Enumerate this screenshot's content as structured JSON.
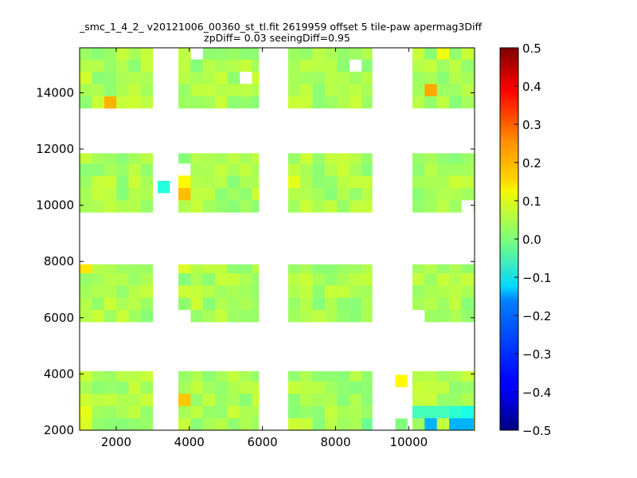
{
  "chart_data": {
    "type": "heatmap",
    "title_line1": "_smc_1_4_2_ v20121006_00360_st_tl.fit 2619959 offset 5 tile-paw apermag3Diff",
    "title_line2": "zpDiff= 0.03 seeingDiff=0.95",
    "xlabel": "",
    "ylabel": "",
    "xlim": [
      1000,
      11800
    ],
    "ylim": [
      2000,
      15600
    ],
    "xticks": [
      "2000",
      "4000",
      "6000",
      "8000",
      "10000"
    ],
    "xtick_values": [
      2000,
      4000,
      6000,
      8000,
      10000
    ],
    "yticks": [
      "2000",
      "4000",
      "6000",
      "8000",
      "10000",
      "12000",
      "14000"
    ],
    "ytick_values": [
      2000,
      4000,
      6000,
      8000,
      10000,
      12000,
      14000
    ],
    "colorbar": {
      "colormap": "jet",
      "vmin": -0.5,
      "vmax": 0.5,
      "ticks": [
        "0.5",
        "0.4",
        "0.3",
        "0.2",
        "0.1",
        "0.0",
        "−0.1",
        "−0.2",
        "−0.3",
        "−0.4",
        "−0.5"
      ],
      "tick_values": [
        0.5,
        0.4,
        0.3,
        0.2,
        0.1,
        0.0,
        -0.1,
        -0.2,
        -0.3,
        -0.4,
        -0.5
      ]
    },
    "cell_size": [
      335,
      435
    ],
    "x_bands": [
      [
        1000,
        3000
      ],
      [
        3700,
        5900
      ],
      [
        6700,
        9000
      ],
      [
        10100,
        11800
      ]
    ],
    "y_bands": [
      [
        2000,
        4100
      ],
      [
        5850,
        7900
      ],
      [
        9750,
        11850
      ],
      [
        13450,
        15600
      ]
    ],
    "base_value": 0.04,
    "cells": [
      {
        "x": 1300,
        "y": 14700,
        "v": 0.08
      },
      {
        "x": 2300,
        "y": 15300,
        "v": 0.07
      },
      {
        "x": 1750,
        "y": 13700,
        "v": 0.2
      },
      {
        "x": 10600,
        "y": 14100,
        "v": 0.21
      },
      {
        "x": 10900,
        "y": 15400,
        "v": 0.11
      },
      {
        "x": 3300,
        "y": 10650,
        "v": -0.09
      },
      {
        "x": 3900,
        "y": 10650,
        "v": 0.13
      },
      {
        "x": 3900,
        "y": 10300,
        "v": 0.19
      },
      {
        "x": 7000,
        "y": 11050,
        "v": 0.1
      },
      {
        "x": 1200,
        "y": 7850,
        "v": 0.15
      },
      {
        "x": 3900,
        "y": 7850,
        "v": 0.09
      },
      {
        "x": 4200,
        "y": 10000,
        "v": 0.07
      },
      {
        "x": 9800,
        "y": 3750,
        "v": 0.13
      },
      {
        "x": 3900,
        "y": 3200,
        "v": 0.18
      },
      {
        "x": 10100,
        "y": 2800,
        "v": -0.06
      },
      {
        "x": 10500,
        "y": 2800,
        "v": -0.06
      },
      {
        "x": 10900,
        "y": 2800,
        "v": -0.06
      },
      {
        "x": 11250,
        "y": 2800,
        "v": -0.08
      },
      {
        "x": 11600,
        "y": 2800,
        "v": -0.1
      },
      {
        "x": 10500,
        "y": 2200,
        "v": -0.2
      },
      {
        "x": 11250,
        "y": 2200,
        "v": -0.2
      },
      {
        "x": 11600,
        "y": 2200,
        "v": -0.2
      },
      {
        "x": 9800,
        "y": 2200,
        "v": 0.0
      },
      {
        "x": 9000,
        "y": 2200,
        "v": -0.02
      },
      {
        "x": 1300,
        "y": 2500,
        "v": 0.1
      },
      {
        "x": 1300,
        "y": 2200,
        "v": 0.09
      }
    ],
    "holes": [
      {
        "x": 4200,
        "y": 15400
      },
      {
        "x": 5700,
        "y": 14700
      },
      {
        "x": 6200,
        "y": 15100
      },
      {
        "x": 8400,
        "y": 15100
      },
      {
        "x": 9300,
        "y": 14400
      },
      {
        "x": 6100,
        "y": 11400
      },
      {
        "x": 3900,
        "y": 11400
      },
      {
        "x": 3950,
        "y": 6200
      },
      {
        "x": 10200,
        "y": 6200
      },
      {
        "x": 9300,
        "y": 2700
      },
      {
        "x": 9300,
        "y": 3750
      },
      {
        "x": 9300,
        "y": 3250
      },
      {
        "x": 11600,
        "y": 9850
      },
      {
        "x": 9600,
        "y": 2200
      }
    ]
  }
}
